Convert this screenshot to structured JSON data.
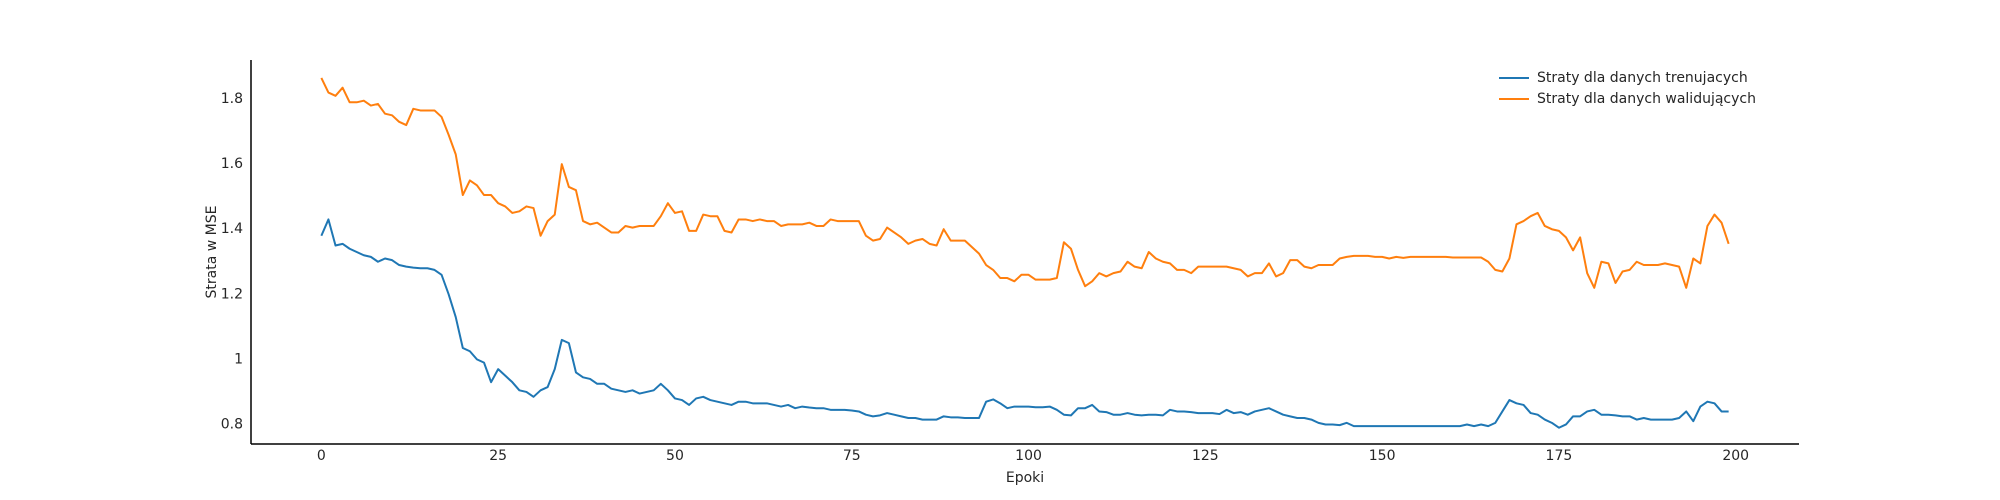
{
  "chart_data": {
    "type": "line",
    "x_label": "Epoki",
    "y_label": "Strata w MSE",
    "xlim": [
      -9.95,
      208.95
    ],
    "ylim": [
      0.74,
      1.92
    ],
    "xticks": [
      0,
      25,
      50,
      75,
      100,
      125,
      150,
      175,
      200
    ],
    "yticks": [
      0.8,
      1.0,
      1.2,
      1.4,
      1.6,
      1.8
    ],
    "grid": false,
    "legend": "upper right",
    "x": [
      0,
      1,
      2,
      3,
      4,
      5,
      6,
      7,
      8,
      9,
      10,
      11,
      12,
      13,
      14,
      15,
      16,
      17,
      18,
      19,
      20,
      21,
      22,
      23,
      24,
      25,
      26,
      27,
      28,
      29,
      30,
      31,
      32,
      33,
      34,
      35,
      36,
      37,
      38,
      39,
      40,
      41,
      42,
      43,
      44,
      45,
      46,
      47,
      48,
      49,
      50,
      51,
      52,
      53,
      54,
      55,
      56,
      57,
      58,
      59,
      60,
      61,
      62,
      63,
      64,
      65,
      66,
      67,
      68,
      69,
      70,
      71,
      72,
      73,
      74,
      75,
      76,
      77,
      78,
      79,
      80,
      81,
      82,
      83,
      84,
      85,
      86,
      87,
      88,
      89,
      90,
      91,
      92,
      93,
      94,
      95,
      96,
      97,
      98,
      99,
      100,
      101,
      102,
      103,
      104,
      105,
      106,
      107,
      108,
      109,
      110,
      111,
      112,
      113,
      114,
      115,
      116,
      117,
      118,
      119,
      120,
      121,
      122,
      123,
      124,
      125,
      126,
      127,
      128,
      129,
      130,
      131,
      132,
      133,
      134,
      135,
      136,
      137,
      138,
      139,
      140,
      141,
      142,
      143,
      144,
      145,
      146,
      147,
      148,
      149,
      150,
      151,
      152,
      153,
      154,
      155,
      156,
      157,
      158,
      159,
      160,
      161,
      162,
      163,
      164,
      165,
      166,
      167,
      168,
      169,
      170,
      171,
      172,
      173,
      174,
      175,
      176,
      177,
      178,
      179,
      180,
      181,
      182,
      183,
      184,
      185,
      186,
      187,
      188,
      189,
      190,
      191,
      192,
      193,
      194,
      195,
      196,
      197,
      198,
      199
    ],
    "series": [
      {
        "name": "Straty dla danych trenujacych",
        "color": "#1f77b4",
        "values": [
          1.38,
          1.43,
          1.35,
          1.355,
          1.34,
          1.33,
          1.32,
          1.315,
          1.3,
          1.31,
          1.305,
          1.29,
          1.285,
          1.282,
          1.28,
          1.28,
          1.275,
          1.26,
          1.2,
          1.13,
          1.035,
          1.025,
          1.0,
          0.99,
          0.93,
          0.97,
          0.95,
          0.93,
          0.905,
          0.9,
          0.885,
          0.905,
          0.915,
          0.97,
          1.06,
          1.05,
          0.96,
          0.945,
          0.94,
          0.925,
          0.925,
          0.91,
          0.905,
          0.9,
          0.905,
          0.895,
          0.9,
          0.905,
          0.925,
          0.905,
          0.88,
          0.875,
          0.86,
          0.88,
          0.885,
          0.875,
          0.87,
          0.865,
          0.86,
          0.87,
          0.87,
          0.865,
          0.865,
          0.865,
          0.86,
          0.855,
          0.86,
          0.85,
          0.855,
          0.852,
          0.85,
          0.85,
          0.845,
          0.845,
          0.845,
          0.843,
          0.84,
          0.83,
          0.825,
          0.828,
          0.835,
          0.83,
          0.825,
          0.82,
          0.82,
          0.815,
          0.815,
          0.815,
          0.825,
          0.822,
          0.822,
          0.82,
          0.82,
          0.82,
          0.87,
          0.877,
          0.865,
          0.85,
          0.855,
          0.855,
          0.855,
          0.853,
          0.853,
          0.855,
          0.845,
          0.83,
          0.828,
          0.85,
          0.85,
          0.86,
          0.84,
          0.838,
          0.83,
          0.83,
          0.835,
          0.83,
          0.828,
          0.83,
          0.83,
          0.828,
          0.845,
          0.84,
          0.84,
          0.838,
          0.835,
          0.835,
          0.835,
          0.832,
          0.845,
          0.835,
          0.838,
          0.83,
          0.84,
          0.845,
          0.85,
          0.84,
          0.83,
          0.825,
          0.82,
          0.82,
          0.815,
          0.805,
          0.8,
          0.8,
          0.798,
          0.805,
          0.795,
          0.795,
          0.795,
          0.795,
          0.795,
          0.795,
          0.795,
          0.795,
          0.795,
          0.795,
          0.795,
          0.795,
          0.795,
          0.795,
          0.795,
          0.795,
          0.8,
          0.795,
          0.8,
          0.795,
          0.805,
          0.84,
          0.875,
          0.865,
          0.86,
          0.835,
          0.83,
          0.815,
          0.805,
          0.79,
          0.8,
          0.825,
          0.825,
          0.84,
          0.845,
          0.83,
          0.83,
          0.828,
          0.825,
          0.825,
          0.815,
          0.82,
          0.815,
          0.815,
          0.815,
          0.815,
          0.82,
          0.84,
          0.81,
          0.855,
          0.87,
          0.865,
          0.84,
          0.84
        ]
      },
      {
        "name": "Straty dla danych walidujących",
        "color": "#ff7f0e",
        "values": [
          1.865,
          1.82,
          1.81,
          1.835,
          1.79,
          1.79,
          1.795,
          1.78,
          1.785,
          1.755,
          1.75,
          1.73,
          1.72,
          1.77,
          1.765,
          1.765,
          1.765,
          1.745,
          1.69,
          1.63,
          1.505,
          1.55,
          1.535,
          1.505,
          1.505,
          1.48,
          1.47,
          1.45,
          1.455,
          1.47,
          1.465,
          1.38,
          1.425,
          1.445,
          1.6,
          1.53,
          1.52,
          1.425,
          1.415,
          1.42,
          1.405,
          1.39,
          1.39,
          1.41,
          1.405,
          1.41,
          1.41,
          1.41,
          1.44,
          1.48,
          1.45,
          1.455,
          1.395,
          1.395,
          1.445,
          1.44,
          1.44,
          1.395,
          1.39,
          1.43,
          1.43,
          1.425,
          1.43,
          1.425,
          1.425,
          1.41,
          1.415,
          1.415,
          1.415,
          1.42,
          1.41,
          1.41,
          1.43,
          1.425,
          1.425,
          1.425,
          1.425,
          1.38,
          1.365,
          1.37,
          1.405,
          1.39,
          1.375,
          1.355,
          1.365,
          1.37,
          1.355,
          1.35,
          1.4,
          1.365,
          1.365,
          1.365,
          1.345,
          1.325,
          1.29,
          1.275,
          1.25,
          1.25,
          1.24,
          1.26,
          1.26,
          1.245,
          1.245,
          1.245,
          1.25,
          1.36,
          1.34,
          1.275,
          1.225,
          1.24,
          1.265,
          1.255,
          1.265,
          1.27,
          1.3,
          1.285,
          1.28,
          1.33,
          1.31,
          1.3,
          1.295,
          1.275,
          1.275,
          1.265,
          1.285,
          1.285,
          1.285,
          1.285,
          1.285,
          1.28,
          1.275,
          1.255,
          1.265,
          1.265,
          1.295,
          1.255,
          1.265,
          1.305,
          1.305,
          1.285,
          1.28,
          1.29,
          1.29,
          1.29,
          1.31,
          1.315,
          1.318,
          1.318,
          1.318,
          1.315,
          1.315,
          1.31,
          1.315,
          1.312,
          1.315,
          1.315,
          1.315,
          1.315,
          1.315,
          1.315,
          1.313,
          1.313,
          1.313,
          1.313,
          1.313,
          1.3,
          1.275,
          1.27,
          1.31,
          1.415,
          1.425,
          1.44,
          1.45,
          1.41,
          1.4,
          1.395,
          1.375,
          1.335,
          1.375,
          1.265,
          1.22,
          1.3,
          1.295,
          1.235,
          1.27,
          1.275,
          1.3,
          1.29,
          1.29,
          1.29,
          1.295,
          1.29,
          1.285,
          1.22,
          1.31,
          1.295,
          1.41,
          1.445,
          1.42,
          1.355
        ]
      }
    ]
  }
}
